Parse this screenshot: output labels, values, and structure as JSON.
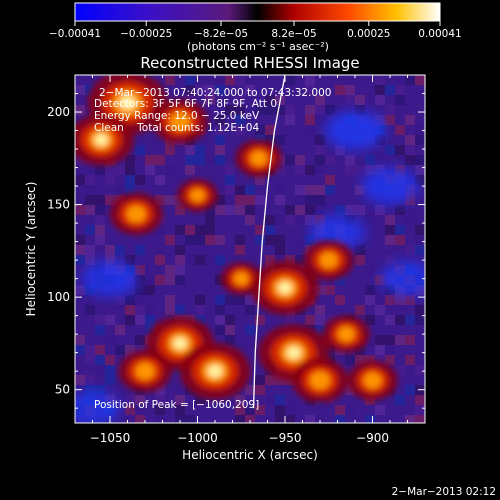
{
  "chart_data": {
    "type": "heatmap",
    "title": "Reconstructed RHESSI Image",
    "xlabel": "Heliocentric X (arcsec)",
    "ylabel": "Heliocentric Y (arcsec)",
    "xlim": [
      -1070,
      -870
    ],
    "ylim": [
      32,
      220
    ],
    "xticks": [
      -1050,
      -1000,
      -950,
      -900
    ],
    "yticks": [
      50,
      100,
      150,
      200
    ],
    "xtick_labels": [
      "−1050",
      "−1000",
      "−950",
      "−900"
    ],
    "ytick_labels": [
      "50",
      "100",
      "150",
      "200"
    ],
    "colorbar": {
      "range": [
        -0.00041,
        0.00041
      ],
      "colormap": "blue-purple-red-yellow-white",
      "ticks": [
        -0.00041,
        -0.00025,
        -8.2e-05,
        8.2e-05,
        0.00025,
        0.00041
      ],
      "tick_labels": [
        "−0.00041",
        "−0.00025",
        "−8.2e−05",
        "8.2e−05",
        "0.00025",
        "0.00041"
      ],
      "unit_label": "(photons cm⁻² s⁻¹ asec⁻²)"
    },
    "annotations": {
      "time_range": "2−Mar−2013 07:40:24.000 to 07:43:32.000",
      "detectors": "Detectors: 3F 5F 6F 7F 8F 9F, Att 0",
      "energy_range": "Energy Range: 12.0 − 25.0 keV",
      "clean_counts": "Clean    Total counts: 1.12E+04",
      "peak_position": "Position of Peak = [−1060,209]"
    },
    "limb_curve": [
      [
        -950,
        220
      ],
      [
        -956,
        190
      ],
      [
        -960,
        160
      ],
      [
        -963,
        130
      ],
      [
        -965,
        100
      ],
      [
        -967,
        70
      ],
      [
        -968,
        40
      ]
    ],
    "hot_spots": [
      {
        "x": -1040,
        "y": 205,
        "intensity": 1.0
      },
      {
        "x": -1055,
        "y": 185,
        "intensity": 0.75
      },
      {
        "x": -1010,
        "y": 195,
        "intensity": 0.6
      },
      {
        "x": -1035,
        "y": 145,
        "intensity": 0.55
      },
      {
        "x": -1000,
        "y": 155,
        "intensity": 0.35
      },
      {
        "x": -1010,
        "y": 75,
        "intensity": 0.8
      },
      {
        "x": -990,
        "y": 60,
        "intensity": 0.85
      },
      {
        "x": -1030,
        "y": 60,
        "intensity": 0.55
      },
      {
        "x": -975,
        "y": 110,
        "intensity": 0.35
      },
      {
        "x": -950,
        "y": 105,
        "intensity": 0.8
      },
      {
        "x": -945,
        "y": 70,
        "intensity": 0.85
      },
      {
        "x": -930,
        "y": 55,
        "intensity": 0.6
      },
      {
        "x": -925,
        "y": 120,
        "intensity": 0.5
      },
      {
        "x": -915,
        "y": 80,
        "intensity": 0.45
      },
      {
        "x": -900,
        "y": 55,
        "intensity": 0.5
      },
      {
        "x": -965,
        "y": 175,
        "intensity": 0.45
      }
    ],
    "cold_spots": [
      {
        "x": -910,
        "y": 190,
        "intensity": 0.7
      },
      {
        "x": -890,
        "y": 160,
        "intensity": 0.6
      },
      {
        "x": -1050,
        "y": 110,
        "intensity": 0.55
      },
      {
        "x": -920,
        "y": 135,
        "intensity": 0.5
      },
      {
        "x": -1060,
        "y": 40,
        "intensity": 0.45
      },
      {
        "x": -880,
        "y": 110,
        "intensity": 0.45
      }
    ]
  },
  "footer": {
    "timestamp": "2−Mar−2013 02:12"
  }
}
